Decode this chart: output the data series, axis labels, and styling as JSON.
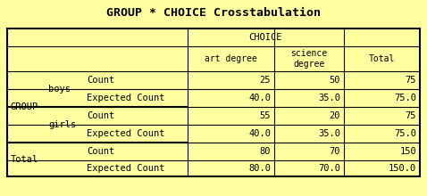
{
  "title": "GROUP * CHOICE Crosstabulation",
  "background_color": "#FFFFA0",
  "border_color": "#000000",
  "text_color": "#000000",
  "title_fontsize": 9.5,
  "cell_fontsize": 7.5,
  "data": [
    [
      "25",
      "50",
      "75"
    ],
    [
      "40.0",
      "35.0",
      "75.0"
    ],
    [
      "55",
      "20",
      "75"
    ],
    [
      "40.0",
      "35.0",
      "75.0"
    ],
    [
      "80",
      "70",
      "150"
    ],
    [
      "80.0",
      "70.0",
      "150.0"
    ]
  ],
  "row_labels_col0": [
    "GROUP",
    "",
    "",
    "",
    "Total",
    ""
  ],
  "row_labels_col1": [
    "boys",
    "",
    "girls",
    "",
    "",
    ""
  ],
  "row_labels_col2": [
    "Count",
    "Expected Count",
    "Count",
    "Expected Count",
    "Count",
    "Expected Count"
  ],
  "col_header": "CHOICE",
  "col_sub1": "art degree",
  "col_sub2": "science\ndegree",
  "col_sub3": "Total",
  "lw_outer": 1.5,
  "lw_inner": 0.8,
  "lw_thick": 1.5,
  "fig_w": 4.78,
  "fig_h": 2.2,
  "dpi": 100
}
